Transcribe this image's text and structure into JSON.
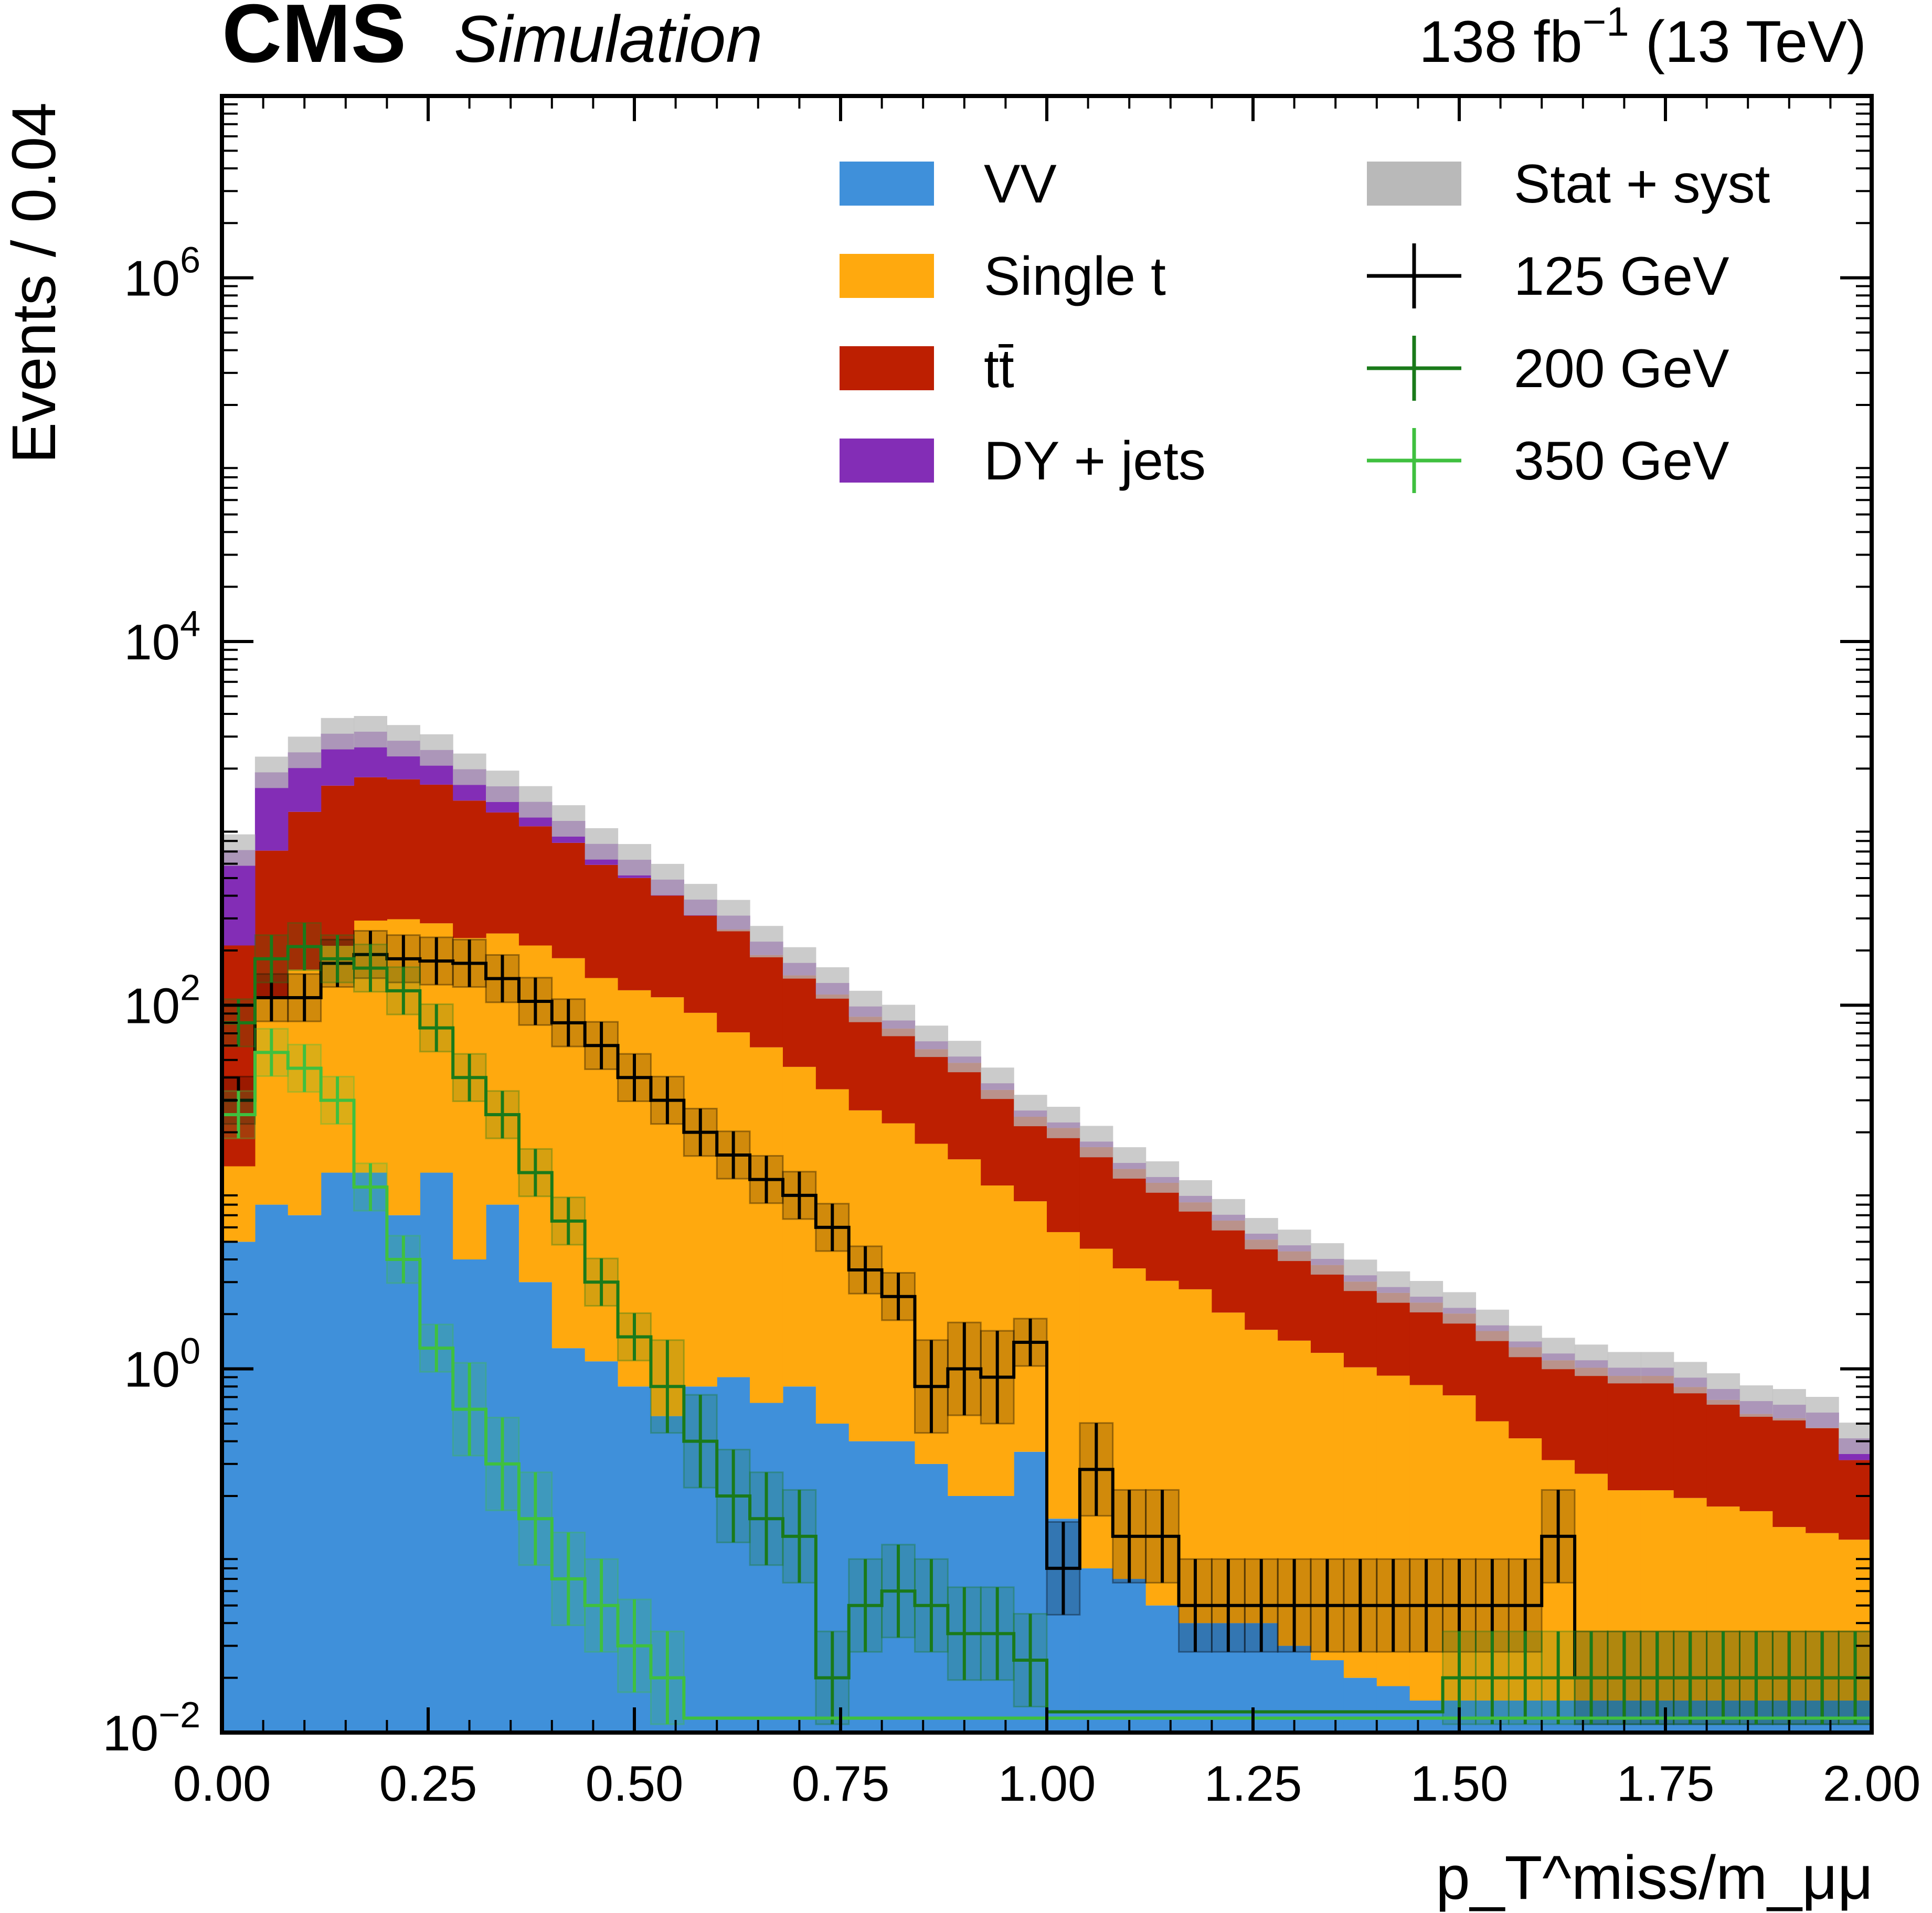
{
  "header": {
    "experiment": "CMS",
    "tag": "Simulation",
    "lumi_value": "138 fb",
    "lumi_exponent": "−1",
    "energy": "(13 TeV)"
  },
  "colors": {
    "vv": "#3f90da",
    "single_t": "#ffa90e",
    "ttbar": "#bd1f01",
    "dy": "#832db6",
    "unc": "#b9b9b9",
    "sig125": "#000000",
    "sig200": "#1a7a1a",
    "sig350": "#3fc03f"
  },
  "chart_data": {
    "type": "bar",
    "stacked": true,
    "log_y": true,
    "title": "",
    "xlabel": "p_T^miss/m_μμ",
    "ylabel": "Events / 0.04",
    "xlim": [
      0.0,
      2.0
    ],
    "ylim": [
      0.01,
      10000000
    ],
    "x_ticks": [
      "0.00",
      "0.25",
      "0.50",
      "0.75",
      "1.00",
      "1.25",
      "1.50",
      "1.75",
      "2.00"
    ],
    "y_ticks": [
      {
        "base": "10",
        "exp": "−2",
        "value": 0.01
      },
      {
        "base": "10",
        "exp": "0",
        "value": 1
      },
      {
        "base": "10",
        "exp": "2",
        "value": 100
      },
      {
        "base": "10",
        "exp": "4",
        "value": 10000
      },
      {
        "base": "10",
        "exp": "6",
        "value": 1000000
      }
    ],
    "bin_width": 0.04,
    "bin_edges_start": 0.0,
    "legend_position": "top-right",
    "legend": [
      {
        "key": "vv",
        "label": "VV",
        "kind": "fill"
      },
      {
        "key": "single_t",
        "label": "Single t",
        "kind": "fill"
      },
      {
        "key": "ttbar",
        "label": "tt̄",
        "kind": "fill"
      },
      {
        "key": "dy",
        "label": "DY + jets",
        "kind": "fill"
      },
      {
        "key": "unc",
        "label": "Stat + syst",
        "kind": "fill"
      },
      {
        "key": "sig125",
        "label": "125 GeV",
        "kind": "errorbar"
      },
      {
        "key": "sig200",
        "label": "200 GeV",
        "kind": "errorbar"
      },
      {
        "key": "sig350",
        "label": "350 GeV",
        "kind": "errorbar"
      }
    ],
    "stack": [
      {
        "key": "vv",
        "name": "VV",
        "values": [
          5,
          8,
          7,
          12,
          12,
          7,
          12,
          4,
          8,
          3,
          1.3,
          1.1,
          0.8,
          0.55,
          0.8,
          0.9,
          0.65,
          0.8,
          0.5,
          0.4,
          0.4,
          0.3,
          0.2,
          0.2,
          0.35,
          0.15,
          0.08,
          0.07,
          0.05,
          0.04,
          0.04,
          0.04,
          0.03,
          0.025,
          0.02,
          0.018,
          0.015,
          0.015,
          0.015,
          0.015,
          0.015,
          0.015,
          0.015,
          0.015,
          0.015,
          0.015,
          0.015,
          0.015,
          0.015,
          0.015
        ]
      },
      {
        "key": "single_t",
        "name": "Single t",
        "values": [
          8,
          100,
          150,
          200,
          280,
          290,
          270,
          230,
          240,
          210,
          180,
          140,
          120,
          110,
          90,
          70,
          58,
          45,
          34,
          26,
          22,
          17,
          14,
          10,
          8,
          5.5,
          4.5,
          3.5,
          3.0,
          2.7,
          2.0,
          1.6,
          1.4,
          1.2,
          1.0,
          0.9,
          0.8,
          0.7,
          0.5,
          0.4,
          0.3,
          0.25,
          0.2,
          0.2,
          0.18,
          0.16,
          0.15,
          0.12,
          0.11,
          0.1
        ]
      },
      {
        "key": "ttbar",
        "name": "tt̄",
        "values": [
          200,
          600,
          1000,
          1400,
          1500,
          1450,
          1350,
          1100,
          900,
          750,
          600,
          450,
          380,
          290,
          220,
          190,
          130,
          100,
          80,
          60,
          52,
          40,
          34,
          24,
          16,
          15.5,
          12,
          9,
          7.5,
          5.5,
          4.5,
          3.5,
          3.0,
          2.5,
          2.0,
          1.7,
          1.5,
          1.3,
          1.1,
          0.9,
          0.8,
          0.75,
          0.7,
          0.7,
          0.6,
          0.5,
          0.4,
          0.4,
          0.35,
          0.2
        ]
      },
      {
        "key": "dy",
        "name": "DY + jets",
        "values": [
          500,
          1200,
          1300,
          1500,
          1400,
          1100,
          900,
          650,
          450,
          350,
          250,
          180,
          130,
          90,
          70,
          50,
          35,
          25,
          18,
          12,
          8,
          6,
          4,
          3,
          2,
          1.5,
          1.2,
          1.0,
          0.8,
          0.7,
          0.5,
          0.4,
          0.35,
          0.3,
          0.25,
          0.2,
          0.18,
          0.15,
          0.12,
          0.1,
          0.1,
          0.1,
          0.1,
          0.1,
          0.1,
          0.1,
          0.1,
          0.1,
          0.1,
          0.1
        ]
      }
    ],
    "signals": [
      {
        "key": "sig125",
        "name": "125 GeV",
        "values": [
          30,
          110,
          110,
          170,
          190,
          180,
          175,
          170,
          140,
          105,
          80,
          60,
          40,
          30,
          20,
          15,
          11,
          9,
          6,
          3.5,
          2.5,
          0.8,
          1.0,
          0.9,
          1.4,
          0.08,
          0.28,
          0.12,
          0.12,
          0.05,
          0.05,
          0.05,
          0.05,
          0.05,
          0.05,
          0.05,
          0.05,
          0.05,
          0.05,
          0.05,
          0.12,
          0.02,
          0.02,
          0.02,
          0.02,
          0.02,
          0.02,
          0.02,
          0.02,
          0.02
        ]
      },
      {
        "key": "sig200",
        "name": "200 GeV",
        "values": [
          80,
          180,
          210,
          180,
          160,
          120,
          75,
          40,
          25,
          12,
          6.5,
          3.0,
          1.5,
          0.8,
          0.4,
          0.2,
          0.15,
          0.12,
          0.02,
          0.05,
          0.06,
          0.05,
          0.035,
          0.035,
          0.025,
          0.013,
          0.013,
          0.013,
          0.013,
          0.013,
          0.013,
          0.013,
          0.013,
          0.013,
          0.013,
          0.013,
          0.013,
          0.02,
          0.02,
          0.02,
          0.02,
          0.02,
          0.02,
          0.02,
          0.02,
          0.02,
          0.02,
          0.02,
          0.02,
          0.02
        ]
      },
      {
        "key": "sig350",
        "name": "350 GeV",
        "values": [
          25,
          55,
          45,
          30,
          10,
          4,
          1.3,
          0.6,
          0.3,
          0.15,
          0.07,
          0.05,
          0.03,
          0.02,
          0.012,
          0.012,
          0.012,
          0.012,
          0.012,
          0.012,
          0.012,
          0.012,
          0.012,
          0.012,
          0.012,
          0.012,
          0.012,
          0.012,
          0.012,
          0.012,
          0.012,
          0.012,
          0.012,
          0.012,
          0.012,
          0.012,
          0.012,
          0.012,
          0.012,
          0.012,
          0.012,
          0.012,
          0.012,
          0.012,
          0.012,
          0.012,
          0.012,
          0.012,
          0.012,
          0.012
        ]
      }
    ]
  }
}
